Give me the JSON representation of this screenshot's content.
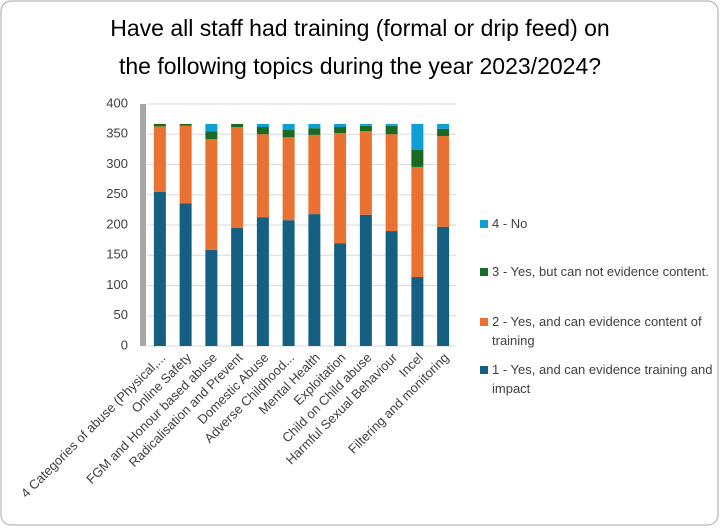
{
  "chart_data": {
    "type": "stacked-bar",
    "title": [
      "Have all staff had training (formal or drip feed) on",
      "the following topics during the year 2023/2024?"
    ],
    "categories": [
      "4 Categories of abuse (Physical,...",
      "Online Safety",
      "FGM and Honour based abuse",
      "Radicalisation and Prevent",
      "Domestic Abuse",
      "Adverse Childhood...",
      "Mental Health",
      "Exploitation",
      "Child on Child abuse",
      "Harmful Sexual Behaviour",
      "Incel",
      "Filtering and monitoring"
    ],
    "series": [
      {
        "name": "1 - Yes, and can evidence training and impact",
        "color": "#156082",
        "values": [
          255,
          236,
          159,
          195,
          213,
          208,
          218,
          170,
          217,
          190,
          114,
          197
        ]
      },
      {
        "name": "2 - Yes, and can evidence content of training",
        "color": "#e97132",
        "values": [
          108,
          128,
          183,
          167,
          137,
          137,
          131,
          182,
          138,
          160,
          182,
          150
        ]
      },
      {
        "name": "3 - Yes, but can not evidence content.",
        "color": "#196b24",
        "values": [
          4,
          3,
          13,
          5,
          12,
          12,
          11,
          10,
          9,
          14,
          28,
          12
        ]
      },
      {
        "name": "4 - No",
        "color": "#0f9ed5",
        "values": [
          0,
          0,
          12,
          0,
          5,
          10,
          7,
          5,
          3,
          3,
          43,
          8
        ]
      }
    ],
    "ylim": [
      0,
      400
    ],
    "yticks": [
      0,
      50,
      100,
      150,
      200,
      250,
      300,
      350,
      400
    ],
    "grid": true,
    "legend": "right"
  }
}
